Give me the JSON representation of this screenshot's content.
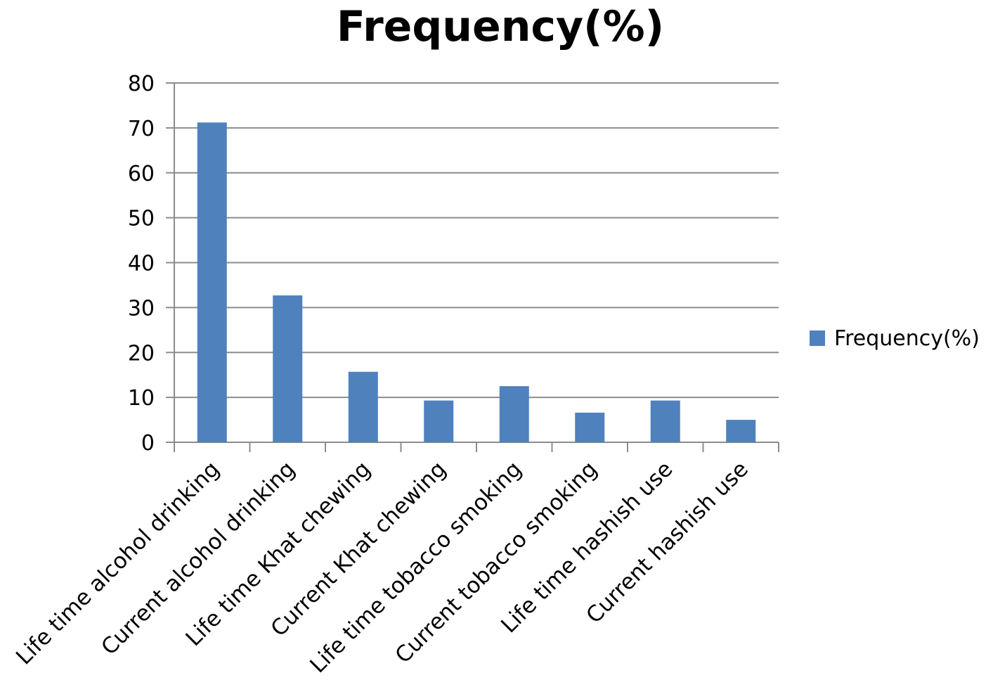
{
  "chart_data": {
    "type": "bar",
    "title": "Frequency(%)",
    "xlabel": "",
    "ylabel": "",
    "categories": [
      "Life time alcohol drinking",
      "Current alcohol drinking",
      "Life time Khat chewing",
      "Current Khat chewing",
      "Life time tobacco smoking",
      "Current tobacco smoking",
      "Life time hashish use",
      "Current hashish use"
    ],
    "series": [
      {
        "name": "Frequency(%)",
        "values": [
          71.2,
          32.7,
          15.7,
          9.3,
          12.5,
          6.6,
          9.3,
          5.0
        ],
        "color": "#4f81bd"
      }
    ],
    "ylim": [
      0,
      80
    ],
    "yticks": [
      0,
      10,
      20,
      30,
      40,
      50,
      60,
      70,
      80
    ],
    "grid": true,
    "legend_position": "right"
  }
}
